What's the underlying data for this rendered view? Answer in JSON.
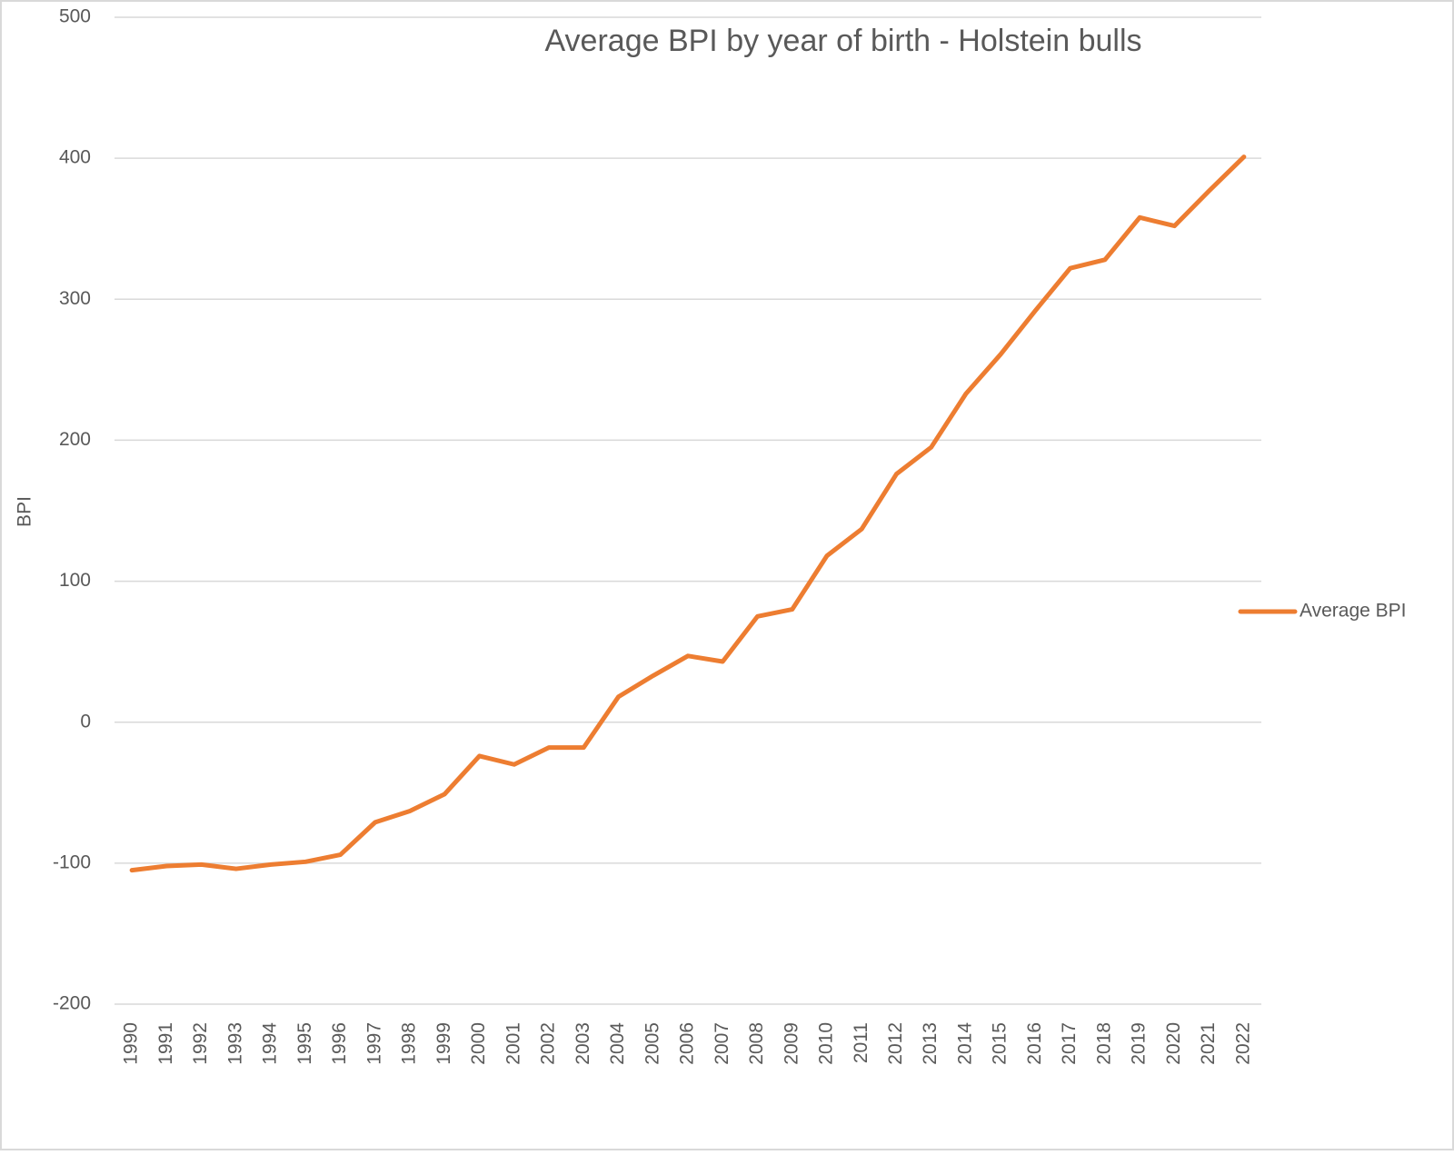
{
  "chart_data": {
    "type": "line",
    "title": "Average BPI by year of birth - Holstein bulls",
    "y_label": "BPI",
    "categories": [
      "1990",
      "1991",
      "1992",
      "1993",
      "1994",
      "1995",
      "1996",
      "1997",
      "1998",
      "1999",
      "2000",
      "2001",
      "2002",
      "2003",
      "2004",
      "2005",
      "2006",
      "2007",
      "2008",
      "2009",
      "2010",
      "2011",
      "2012",
      "2013",
      "2014",
      "2015",
      "2016",
      "2017",
      "2018",
      "2019",
      "2020",
      "2021",
      "2022"
    ],
    "series": [
      {
        "name": "Average BPI",
        "color": "#ed7d31",
        "values": [
          -105,
          -102,
          -101,
          -104,
          -101,
          -99,
          -94,
          -71,
          -63,
          -51,
          -24,
          -30,
          -18,
          -18,
          18,
          33,
          47,
          43,
          75,
          80,
          118,
          137,
          176,
          195,
          233,
          261,
          292,
          322,
          328,
          358,
          352,
          377,
          401
        ]
      }
    ],
    "ylim": [
      -200,
      500
    ],
    "yticks": [
      -200,
      -100,
      0,
      100,
      200,
      300,
      400,
      500
    ],
    "grid": true,
    "legend": "right"
  }
}
